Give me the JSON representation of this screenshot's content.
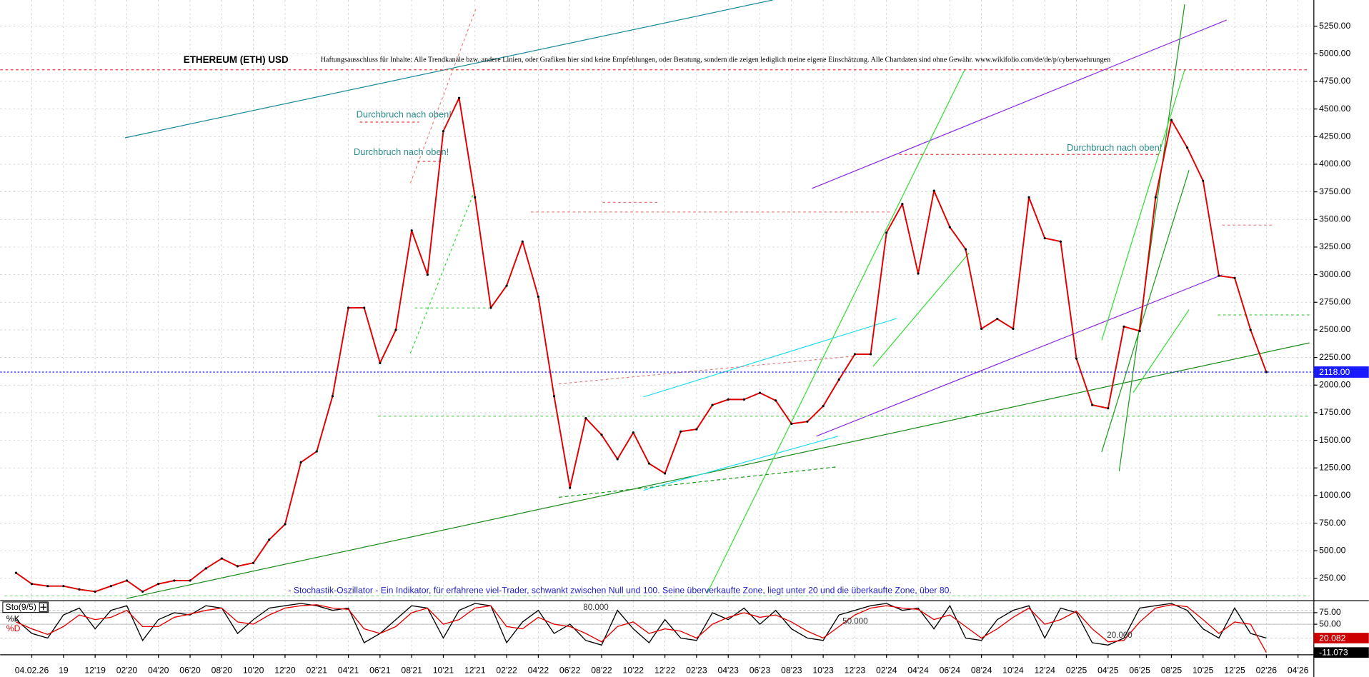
{
  "chart_data": [
    {
      "type": "line",
      "title": "ETHEREUM (ETH) USD",
      "subtitle": "Haftungsausschluss für Inhalte: Alle Trendkanäle bzw. andere Linien, oder Grafiken hier sind keine Empfehlungen, oder Beratung, sondern die zeigen lediglich meine eigene Einschätzung. Alle Chartdaten sind ohne Gewähr.  www.wikifolio.com/de/de/p/cyberwaehrungen",
      "annotations": [
        "Durchbruch nach oben!",
        "Durchbruch nach oben!",
        "Durchbruch nach oben!",
        "- Stochastik-Oszillator - Ein Indikator, für erfahrene viel-Trader, schwankt zwischen Null und 100. Seine überverkaufte Zone, liegt unter 20 und die überkaufte Zone, über 80."
      ],
      "x": [
        "2019-07",
        "2019-08",
        "2019-09",
        "2019-10",
        "2019-11",
        "2019-12",
        "2020-01",
        "2020-02",
        "2020-03",
        "2020-04",
        "2020-05",
        "2020-06",
        "2020-07",
        "2020-08",
        "2020-09",
        "2020-10",
        "2020-11",
        "2020-12",
        "2021-01",
        "2021-02",
        "2021-03",
        "2021-04",
        "2021-05",
        "2021-06",
        "2021-07",
        "2021-08",
        "2021-09",
        "2021-10",
        "2021-11",
        "2021-12",
        "2022-01",
        "2022-02",
        "2022-03",
        "2022-04",
        "2022-05",
        "2022-06",
        "2022-07",
        "2022-08",
        "2022-09",
        "2022-10",
        "2022-11",
        "2022-12",
        "2023-01",
        "2023-02",
        "2023-03",
        "2023-04",
        "2023-05",
        "2023-06",
        "2023-07",
        "2023-08",
        "2023-09",
        "2023-10",
        "2023-11",
        "2023-12",
        "2024-01",
        "2024-02",
        "2024-03",
        "2024-04",
        "2024-05",
        "2024-06",
        "2024-07",
        "2024-08",
        "2024-09",
        "2024-10",
        "2024-11",
        "2024-12",
        "2025-01",
        "2025-02",
        "2025-03",
        "2025-04",
        "2025-05",
        "2025-06",
        "2025-07",
        "2025-08",
        "2025-09",
        "2025-10",
        "2025-11",
        "2025-12",
        "2026-01",
        "2026-02"
      ],
      "values": [
        300,
        200,
        180,
        180,
        150,
        130,
        180,
        230,
        130,
        200,
        230,
        230,
        340,
        430,
        360,
        390,
        600,
        740,
        1300,
        1400,
        1900,
        2700,
        2700,
        2200,
        2500,
        3400,
        3000,
        4300,
        4600,
        3700,
        2700,
        2900,
        3300,
        2800,
        1900,
        1070,
        1700,
        1550,
        1330,
        1570,
        1290,
        1200,
        1580,
        1600,
        1820,
        1870,
        1870,
        1930,
        1860,
        1650,
        1670,
        1810,
        2050,
        2280,
        2280,
        3380,
        3640,
        3010,
        3760,
        3430,
        3230,
        2510,
        2600,
        2510,
        3700,
        3330,
        3300,
        2240,
        1820,
        1790,
        2530,
        2490,
        3700,
        4400,
        4150,
        3850,
        2990,
        2970,
        2500,
        2118
      ],
      "color": "#e00000",
      "last_value": {
        "value": 2118,
        "label": "2118.00"
      },
      "xlim": [
        "2019-06",
        "2026-05"
      ],
      "xticks": [
        {
          "value": "2019-08",
          "label": "04.02.26"
        },
        {
          "value": "2019-10",
          "label": "19"
        },
        {
          "value": "2019-12",
          "label": "12'19"
        },
        {
          "value": "2020-02",
          "label": "02'20"
        },
        {
          "value": "2020-04",
          "label": "04'20"
        },
        {
          "value": "2020-06",
          "label": "06'20"
        },
        {
          "value": "2020-08",
          "label": "08'20"
        },
        {
          "value": "2020-10",
          "label": "10'20"
        },
        {
          "value": "2020-12",
          "label": "12'20"
        },
        {
          "value": "2021-02",
          "label": "02'21"
        },
        {
          "value": "2021-04",
          "label": "04'21"
        },
        {
          "value": "2021-06",
          "label": "06'21"
        },
        {
          "value": "2021-08",
          "label": "08'21"
        },
        {
          "value": "2021-10",
          "label": "10'21"
        },
        {
          "value": "2021-12",
          "label": "12'21"
        },
        {
          "value": "2022-02",
          "label": "02'22"
        },
        {
          "value": "2022-04",
          "label": "04'22"
        },
        {
          "value": "2022-06",
          "label": "06'22"
        },
        {
          "value": "2022-08",
          "label": "08'22"
        },
        {
          "value": "2022-10",
          "label": "10'22"
        },
        {
          "value": "2022-12",
          "label": "12'22"
        },
        {
          "value": "2023-02",
          "label": "02'23"
        },
        {
          "value": "2023-04",
          "label": "04'23"
        },
        {
          "value": "2023-06",
          "label": "06'23"
        },
        {
          "value": "2023-08",
          "label": "08'23"
        },
        {
          "value": "2023-10",
          "label": "10'23"
        },
        {
          "value": "2023-12",
          "label": "12'23"
        },
        {
          "value": "2024-02",
          "label": "02'24"
        },
        {
          "value": "2024-04",
          "label": "04'24"
        },
        {
          "value": "2024-06",
          "label": "06'24"
        },
        {
          "value": "2024-08",
          "label": "08'24"
        },
        {
          "value": "2024-10",
          "label": "10'24"
        },
        {
          "value": "2024-12",
          "label": "12'24"
        },
        {
          "value": "2025-02",
          "label": "02'25"
        },
        {
          "value": "2025-04",
          "label": "04'25"
        },
        {
          "value": "2025-06",
          "label": "06'25"
        },
        {
          "value": "2025-08",
          "label": "08'25"
        },
        {
          "value": "2025-10",
          "label": "10'25"
        },
        {
          "value": "2025-12",
          "label": "12'25"
        },
        {
          "value": "2026-02",
          "label": "02'26"
        },
        {
          "value": "2026-04",
          "label": "04'26"
        }
      ],
      "ylim": [
        52,
        5487
      ],
      "yticks": [
        {
          "value": 250,
          "label": "250.00"
        },
        {
          "value": 500,
          "label": "500.00"
        },
        {
          "value": 750,
          "label": "750.00"
        },
        {
          "value": 1000,
          "label": "1000.00"
        },
        {
          "value": 1250,
          "label": "1250.00"
        },
        {
          "value": 1500,
          "label": "1500.00"
        },
        {
          "value": 1750,
          "label": "1750.00"
        },
        {
          "value": 2000,
          "label": "2000.00"
        },
        {
          "value": 2250,
          "label": "2250.00"
        },
        {
          "value": 2500,
          "label": "2500.00"
        },
        {
          "value": 2750,
          "label": "2750.00"
        },
        {
          "value": 3000,
          "label": "3000.00"
        },
        {
          "value": 3250,
          "label": "3250.00"
        },
        {
          "value": 3500,
          "label": "3500.00"
        },
        {
          "value": 3750,
          "label": "3750.00"
        },
        {
          "value": 4000,
          "label": "4000.00"
        },
        {
          "value": 4250,
          "label": "4250.00"
        },
        {
          "value": 4500,
          "label": "4500.00"
        },
        {
          "value": 4750,
          "label": "4750.00"
        },
        {
          "value": 5000,
          "label": "5000.00"
        },
        {
          "value": 5250,
          "label": "5250.00"
        }
      ],
      "grid": true
    },
    {
      "type": "line",
      "title": "Sto(9/5)",
      "series": [
        {
          "name": "%K",
          "color": "#000000",
          "values": [
            60,
            30,
            20,
            70,
            85,
            40,
            80,
            90,
            15,
            60,
            75,
            70,
            90,
            85,
            30,
            60,
            85,
            90,
            95,
            90,
            80,
            85,
            10,
            30,
            60,
            90,
            85,
            20,
            80,
            95,
            90,
            10,
            55,
            80,
            30,
            50,
            15,
            5,
            80,
            40,
            10,
            60,
            20,
            15,
            75,
            60,
            85,
            50,
            80,
            40,
            20,
            15,
            70,
            80,
            90,
            95,
            80,
            85,
            40,
            90,
            20,
            15,
            60,
            80,
            90,
            20,
            85,
            75,
            10,
            5,
            20,
            85,
            90,
            95,
            80,
            40,
            20,
            85,
            30,
            20.082
          ]
        },
        {
          "name": "%D",
          "color": "#e00000",
          "values": [
            55,
            40,
            28,
            45,
            70,
            60,
            65,
            80,
            45,
            45,
            65,
            72,
            80,
            85,
            55,
            50,
            70,
            85,
            90,
            92,
            85,
            82,
            40,
            30,
            45,
            75,
            85,
            50,
            60,
            85,
            90,
            45,
            40,
            65,
            50,
            45,
            30,
            12,
            45,
            55,
            30,
            40,
            35,
            20,
            50,
            65,
            75,
            65,
            70,
            55,
            35,
            20,
            45,
            70,
            85,
            90,
            85,
            82,
            60,
            70,
            45,
            20,
            40,
            65,
            85,
            50,
            60,
            78,
            40,
            12,
            15,
            55,
            85,
            92,
            88,
            60,
            30,
            55,
            50,
            -11.073
          ]
        }
      ],
      "levels": [
        {
          "value": 80,
          "label": "80.000"
        },
        {
          "value": 50,
          "label": "50.000"
        },
        {
          "value": 20,
          "label": "20.000"
        }
      ],
      "ylim": [
        -15,
        100
      ],
      "yticks": [
        {
          "value": 75,
          "label": "75.00"
        },
        {
          "value": 50,
          "label": "50.00"
        }
      ]
    }
  ]
}
